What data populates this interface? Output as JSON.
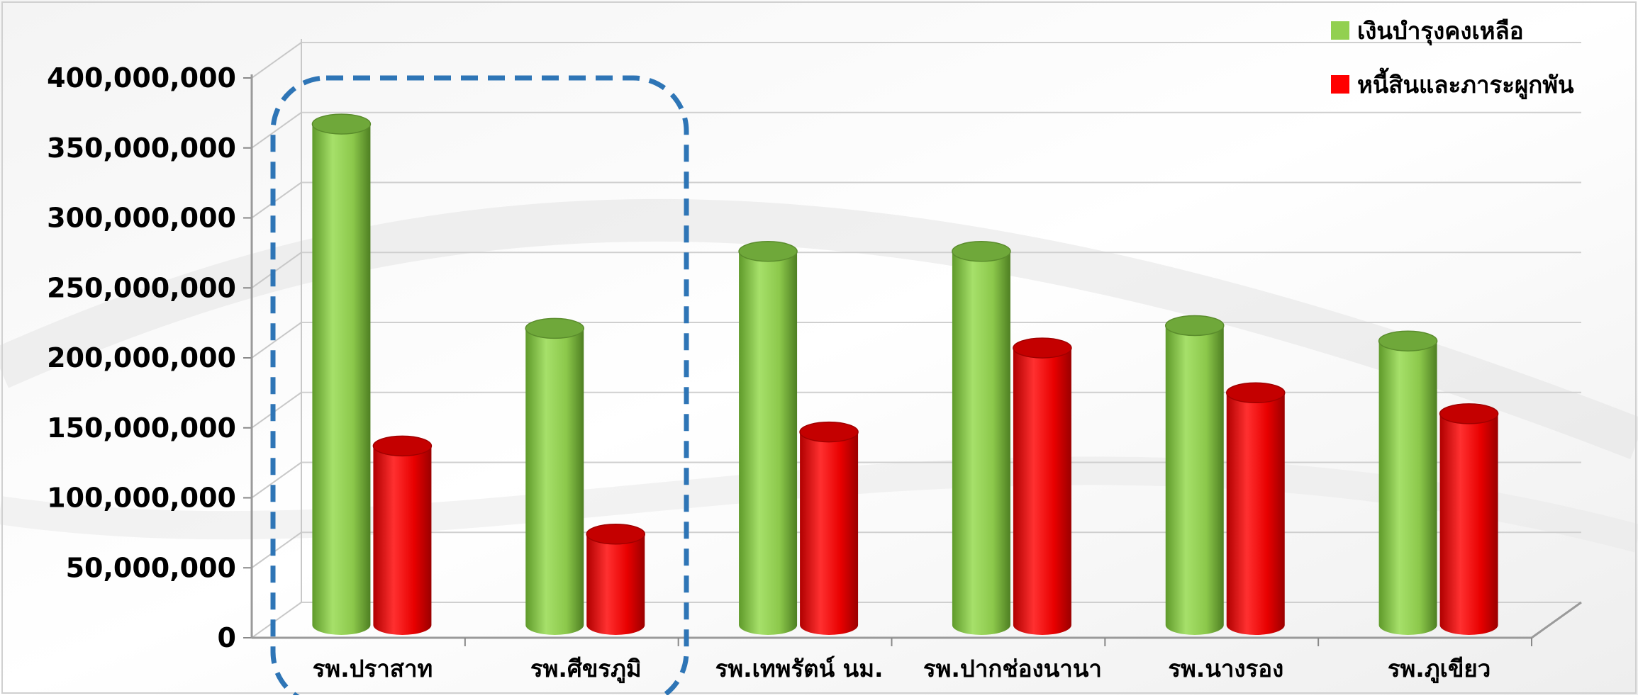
{
  "chart_data": {
    "type": "bar",
    "title": "",
    "xlabel": "",
    "ylabel": "",
    "categories": [
      "รพ.ปราสาท",
      "รพ.ศีขรภูมิ",
      "รพ.เทพรัตน์ นม.",
      "รพ.ปากช่องนานา",
      "รพ.นางรอง",
      "รพ.ภูเขียว"
    ],
    "series": [
      {
        "name": "เงินบำรุงคงเหลือ",
        "color": "#92d050",
        "values": [
          363000000,
          217000000,
          272000000,
          272000000,
          219000000,
          208000000
        ]
      },
      {
        "name": "หนี้สินและภาระผูกพัน",
        "color": "#ff0000",
        "values": [
          133000000,
          70000000,
          143000000,
          203000000,
          171000000,
          156000000
        ]
      }
    ],
    "ylim": [
      0,
      400000000
    ],
    "y_ticks": [
      {
        "value": 0,
        "label": "0"
      },
      {
        "value": 50000000,
        "label": "50,000,000"
      },
      {
        "value": 100000000,
        "label": "100,000,000"
      },
      {
        "value": 150000000,
        "label": "150,000,000"
      },
      {
        "value": 200000000,
        "label": "200,000,000"
      },
      {
        "value": 250000000,
        "label": "250,000,000"
      },
      {
        "value": 300000000,
        "label": "300,000,000"
      },
      {
        "value": 350000000,
        "label": "350,000,000"
      },
      {
        "value": 400000000,
        "label": "400,000,000"
      }
    ],
    "grid": true,
    "legend_position": "top-right",
    "highlight": {
      "categories": [
        "รพ.ปราสาท",
        "รพ.ศีขรภูมิ"
      ],
      "color": "#2e75b6",
      "style": "dashed rounded box"
    },
    "style": "3d cylinder"
  }
}
